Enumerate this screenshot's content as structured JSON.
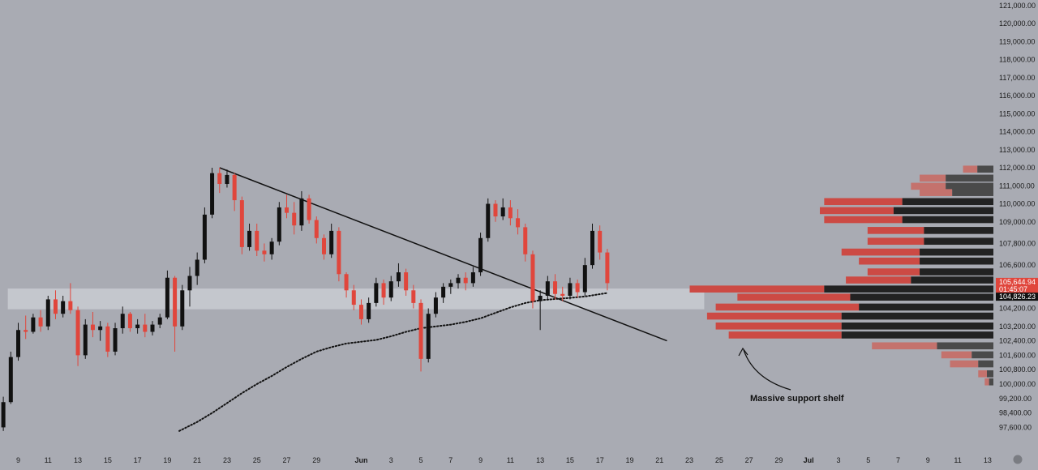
{
  "chart_data": {
    "type": "candlestick",
    "price_axis": {
      "range": [
        97200,
        121300
      ],
      "ticks": [
        {
          "value": 121000,
          "label": "121,000.00"
        },
        {
          "value": 120000,
          "label": "120,000.00"
        },
        {
          "value": 119000,
          "label": "119,000.00"
        },
        {
          "value": 118000,
          "label": "118,000.00"
        },
        {
          "value": 117000,
          "label": "117,000.00"
        },
        {
          "value": 116000,
          "label": "116,000.00"
        },
        {
          "value": 115000,
          "label": "115,000.00"
        },
        {
          "value": 114000,
          "label": "114,000.00"
        },
        {
          "value": 113000,
          "label": "113,000.00"
        },
        {
          "value": 112000,
          "label": "112,000.00"
        },
        {
          "value": 111000,
          "label": "111,000.00"
        },
        {
          "value": 110000,
          "label": "110,000.00"
        },
        {
          "value": 109000,
          "label": "109,000.00"
        },
        {
          "value": 107800,
          "label": "107,800.00"
        },
        {
          "value": 106600,
          "label": "106,600.00"
        },
        {
          "value": 104200,
          "label": "104,200.00"
        },
        {
          "value": 103200,
          "label": "103,200.00"
        },
        {
          "value": 102400,
          "label": "102,400.00"
        },
        {
          "value": 101600,
          "label": "101,600.00"
        },
        {
          "value": 100800,
          "label": "100,800.00"
        },
        {
          "value": 100000,
          "label": "100,000.00"
        },
        {
          "value": 99200,
          "label": "99,200.00"
        },
        {
          "value": 98400,
          "label": "98,400.00"
        },
        {
          "value": 97600,
          "label": "97,600.00"
        }
      ],
      "badges": [
        {
          "value": 105644.94,
          "label": "105,644.94",
          "sublabel": "01:45:07",
          "color": "#e0463c"
        },
        {
          "value": 104826.23,
          "label": "104,826.23",
          "color": "#111111"
        }
      ]
    },
    "time_axis": {
      "ticks": [
        {
          "day": 9,
          "label": "9"
        },
        {
          "day": 11,
          "label": "11"
        },
        {
          "day": 13,
          "label": "13"
        },
        {
          "day": 15,
          "label": "15"
        },
        {
          "day": 17,
          "label": "17"
        },
        {
          "day": 19,
          "label": "19"
        },
        {
          "day": 21,
          "label": "21"
        },
        {
          "day": 23,
          "label": "23"
        },
        {
          "day": 25,
          "label": "25"
        },
        {
          "day": 27,
          "label": "27"
        },
        {
          "day": 29,
          "label": "29"
        },
        {
          "day": 32,
          "label": "Jun",
          "month": true
        },
        {
          "day": 34,
          "label": "3"
        },
        {
          "day": 36,
          "label": "5"
        },
        {
          "day": 38,
          "label": "7"
        },
        {
          "day": 40,
          "label": "9"
        },
        {
          "day": 42,
          "label": "11"
        },
        {
          "day": 44,
          "label": "13"
        },
        {
          "day": 46,
          "label": "15"
        },
        {
          "day": 48,
          "label": "17"
        },
        {
          "day": 50,
          "label": "19"
        },
        {
          "day": 52,
          "label": "21"
        },
        {
          "day": 54,
          "label": "23"
        },
        {
          "day": 56,
          "label": "25"
        },
        {
          "day": 58,
          "label": "27"
        },
        {
          "day": 60,
          "label": "29"
        },
        {
          "day": 62,
          "label": "Jul",
          "month": true
        },
        {
          "day": 64,
          "label": "3"
        },
        {
          "day": 66,
          "label": "5"
        },
        {
          "day": 68,
          "label": "7"
        },
        {
          "day": 70,
          "label": "9"
        },
        {
          "day": 72,
          "label": "11"
        },
        {
          "day": 74,
          "label": "13"
        }
      ]
    },
    "candles": [
      {
        "day": 8.0,
        "o": 97600,
        "h": 99300,
        "l": 97400,
        "c": 99000
      },
      {
        "day": 8.5,
        "o": 99000,
        "h": 101800,
        "l": 98900,
        "c": 101500
      },
      {
        "day": 9.0,
        "o": 101500,
        "h": 103400,
        "l": 101300,
        "c": 103000
      },
      {
        "day": 9.5,
        "o": 103000,
        "h": 103800,
        "l": 102500,
        "c": 102900
      },
      {
        "day": 10.0,
        "o": 102900,
        "h": 103900,
        "l": 102800,
        "c": 103700
      },
      {
        "day": 10.5,
        "o": 103700,
        "h": 104100,
        "l": 102900,
        "c": 103200
      },
      {
        "day": 11.0,
        "o": 103200,
        "h": 104900,
        "l": 103000,
        "c": 104700
      },
      {
        "day": 11.5,
        "o": 104700,
        "h": 105200,
        "l": 103600,
        "c": 103900
      },
      {
        "day": 12.0,
        "o": 103900,
        "h": 104900,
        "l": 103700,
        "c": 104600
      },
      {
        "day": 12.5,
        "o": 104600,
        "h": 105600,
        "l": 103900,
        "c": 104100
      },
      {
        "day": 13.0,
        "o": 104100,
        "h": 104300,
        "l": 101000,
        "c": 101600
      },
      {
        "day": 13.5,
        "o": 101600,
        "h": 103600,
        "l": 101400,
        "c": 103300
      },
      {
        "day": 14.0,
        "o": 103300,
        "h": 104000,
        "l": 102600,
        "c": 103000
      },
      {
        "day": 14.5,
        "o": 103000,
        "h": 103500,
        "l": 102400,
        "c": 103200
      },
      {
        "day": 15.0,
        "o": 103200,
        "h": 103400,
        "l": 101500,
        "c": 101800
      },
      {
        "day": 15.5,
        "o": 101800,
        "h": 103400,
        "l": 101600,
        "c": 103100
      },
      {
        "day": 16.0,
        "o": 103100,
        "h": 104300,
        "l": 102800,
        "c": 103900
      },
      {
        "day": 16.5,
        "o": 103900,
        "h": 104000,
        "l": 102900,
        "c": 103100
      },
      {
        "day": 17.0,
        "o": 103100,
        "h": 103600,
        "l": 102800,
        "c": 103300
      },
      {
        "day": 17.5,
        "o": 103300,
        "h": 103900,
        "l": 102600,
        "c": 102900
      },
      {
        "day": 18.0,
        "o": 102900,
        "h": 103500,
        "l": 102700,
        "c": 103300
      },
      {
        "day": 18.5,
        "o": 103300,
        "h": 103900,
        "l": 103100,
        "c": 103700
      },
      {
        "day": 19.0,
        "o": 103700,
        "h": 106300,
        "l": 103600,
        "c": 105900
      },
      {
        "day": 19.5,
        "o": 105900,
        "h": 106000,
        "l": 101800,
        "c": 103200
      },
      {
        "day": 20.0,
        "o": 103200,
        "h": 105500,
        "l": 103000,
        "c": 105200
      },
      {
        "day": 20.5,
        "o": 105200,
        "h": 106500,
        "l": 104300,
        "c": 106000
      },
      {
        "day": 21.0,
        "o": 106000,
        "h": 107300,
        "l": 105500,
        "c": 106900
      },
      {
        "day": 21.5,
        "o": 106900,
        "h": 109800,
        "l": 106700,
        "c": 109400
      },
      {
        "day": 22.0,
        "o": 109400,
        "h": 112000,
        "l": 109200,
        "c": 111700
      },
      {
        "day": 22.5,
        "o": 111700,
        "h": 112000,
        "l": 110600,
        "c": 111100
      },
      {
        "day": 23.0,
        "o": 111100,
        "h": 111900,
        "l": 110900,
        "c": 111600
      },
      {
        "day": 23.5,
        "o": 111600,
        "h": 111700,
        "l": 109600,
        "c": 110200
      },
      {
        "day": 24.0,
        "o": 110200,
        "h": 110400,
        "l": 107200,
        "c": 107600
      },
      {
        "day": 24.5,
        "o": 107600,
        "h": 108900,
        "l": 107400,
        "c": 108500
      },
      {
        "day": 25.0,
        "o": 108500,
        "h": 108900,
        "l": 107100,
        "c": 107400
      },
      {
        "day": 25.5,
        "o": 107400,
        "h": 107800,
        "l": 106800,
        "c": 107200
      },
      {
        "day": 26.0,
        "o": 107200,
        "h": 108100,
        "l": 106900,
        "c": 107900
      },
      {
        "day": 26.5,
        "o": 107900,
        "h": 110100,
        "l": 107700,
        "c": 109800
      },
      {
        "day": 27.0,
        "o": 109800,
        "h": 110500,
        "l": 109200,
        "c": 109500
      },
      {
        "day": 27.5,
        "o": 109500,
        "h": 110100,
        "l": 108300,
        "c": 108800
      },
      {
        "day": 28.0,
        "o": 108800,
        "h": 110700,
        "l": 108500,
        "c": 110300
      },
      {
        "day": 28.5,
        "o": 110300,
        "h": 110500,
        "l": 108900,
        "c": 109100
      },
      {
        "day": 29.0,
        "o": 109100,
        "h": 109300,
        "l": 107800,
        "c": 108100
      },
      {
        "day": 29.5,
        "o": 108100,
        "h": 108300,
        "l": 106900,
        "c": 107200
      },
      {
        "day": 30.0,
        "o": 107200,
        "h": 108900,
        "l": 107000,
        "c": 108500
      },
      {
        "day": 30.5,
        "o": 108500,
        "h": 108700,
        "l": 105700,
        "c": 106100
      },
      {
        "day": 31.0,
        "o": 106100,
        "h": 106200,
        "l": 104800,
        "c": 105200
      },
      {
        "day": 31.5,
        "o": 105200,
        "h": 105500,
        "l": 104100,
        "c": 104400
      },
      {
        "day": 32.0,
        "o": 104400,
        "h": 104700,
        "l": 103300,
        "c": 103600
      },
      {
        "day": 32.5,
        "o": 103600,
        "h": 104800,
        "l": 103400,
        "c": 104500
      },
      {
        "day": 33.0,
        "o": 104500,
        "h": 105900,
        "l": 104300,
        "c": 105600
      },
      {
        "day": 33.5,
        "o": 105600,
        "h": 105800,
        "l": 104400,
        "c": 104800
      },
      {
        "day": 34.0,
        "o": 104800,
        "h": 106000,
        "l": 104600,
        "c": 105700
      },
      {
        "day": 34.5,
        "o": 105700,
        "h": 106700,
        "l": 105400,
        "c": 106200
      },
      {
        "day": 35.0,
        "o": 106200,
        "h": 106400,
        "l": 104900,
        "c": 105200
      },
      {
        "day": 35.5,
        "o": 105200,
        "h": 105500,
        "l": 104200,
        "c": 104500
      },
      {
        "day": 36.0,
        "o": 104500,
        "h": 104700,
        "l": 100700,
        "c": 101400
      },
      {
        "day": 36.5,
        "o": 101400,
        "h": 104200,
        "l": 101200,
        "c": 103900
      },
      {
        "day": 37.0,
        "o": 103900,
        "h": 105100,
        "l": 103700,
        "c": 104800
      },
      {
        "day": 37.5,
        "o": 104800,
        "h": 105600,
        "l": 104500,
        "c": 105400
      },
      {
        "day": 38.0,
        "o": 105400,
        "h": 105800,
        "l": 105000,
        "c": 105600
      },
      {
        "day": 38.5,
        "o": 105600,
        "h": 106100,
        "l": 105300,
        "c": 105900
      },
      {
        "day": 39.0,
        "o": 105900,
        "h": 106200,
        "l": 105200,
        "c": 105600
      },
      {
        "day": 39.5,
        "o": 105600,
        "h": 106500,
        "l": 105400,
        "c": 106200
      },
      {
        "day": 40.0,
        "o": 106200,
        "h": 108400,
        "l": 106000,
        "c": 108100
      },
      {
        "day": 40.5,
        "o": 108100,
        "h": 110300,
        "l": 107900,
        "c": 110000
      },
      {
        "day": 41.0,
        "o": 110000,
        "h": 110200,
        "l": 109000,
        "c": 109300
      },
      {
        "day": 41.5,
        "o": 109300,
        "h": 110300,
        "l": 109100,
        "c": 109800
      },
      {
        "day": 42.0,
        "o": 109800,
        "h": 110200,
        "l": 108800,
        "c": 109200
      },
      {
        "day": 42.5,
        "o": 109200,
        "h": 109700,
        "l": 108300,
        "c": 108700
      },
      {
        "day": 43.0,
        "o": 108700,
        "h": 108900,
        "l": 106800,
        "c": 107200
      },
      {
        "day": 43.5,
        "o": 107200,
        "h": 107400,
        "l": 104200,
        "c": 104600
      },
      {
        "day": 44.0,
        "o": 104600,
        "h": 105200,
        "l": 103000,
        "c": 104900
      },
      {
        "day": 44.5,
        "o": 104900,
        "h": 106000,
        "l": 104700,
        "c": 105700
      },
      {
        "day": 45.0,
        "o": 105700,
        "h": 106100,
        "l": 104700,
        "c": 105000
      },
      {
        "day": 45.5,
        "o": 105000,
        "h": 105400,
        "l": 104600,
        "c": 104900
      },
      {
        "day": 46.0,
        "o": 104900,
        "h": 105900,
        "l": 104700,
        "c": 105600
      },
      {
        "day": 46.5,
        "o": 105600,
        "h": 105800,
        "l": 104800,
        "c": 105100
      },
      {
        "day": 47.0,
        "o": 105100,
        "h": 107000,
        "l": 104900,
        "c": 106600
      },
      {
        "day": 47.5,
        "o": 106600,
        "h": 108900,
        "l": 106400,
        "c": 108500
      },
      {
        "day": 48.0,
        "o": 108500,
        "h": 108800,
        "l": 106900,
        "c": 107300
      },
      {
        "day": 48.5,
        "o": 107300,
        "h": 107500,
        "l": 105200,
        "c": 105600
      }
    ],
    "moving_average": [
      {
        "day": 19.8,
        "v": 97400
      },
      {
        "day": 21,
        "v": 97900
      },
      {
        "day": 22,
        "v": 98400
      },
      {
        "day": 23,
        "v": 98950
      },
      {
        "day": 24,
        "v": 99500
      },
      {
        "day": 25,
        "v": 100000
      },
      {
        "day": 26,
        "v": 100450
      },
      {
        "day": 27,
        "v": 100950
      },
      {
        "day": 28,
        "v": 101400
      },
      {
        "day": 29,
        "v": 101800
      },
      {
        "day": 30,
        "v": 102050
      },
      {
        "day": 31,
        "v": 102250
      },
      {
        "day": 32,
        "v": 102350
      },
      {
        "day": 33,
        "v": 102450
      },
      {
        "day": 34,
        "v": 102650
      },
      {
        "day": 35,
        "v": 102900
      },
      {
        "day": 36,
        "v": 103100
      },
      {
        "day": 37,
        "v": 103200
      },
      {
        "day": 38,
        "v": 103300
      },
      {
        "day": 39,
        "v": 103450
      },
      {
        "day": 40,
        "v": 103650
      },
      {
        "day": 41,
        "v": 103950
      },
      {
        "day": 42,
        "v": 104250
      },
      {
        "day": 43,
        "v": 104500
      },
      {
        "day": 44,
        "v": 104650
      },
      {
        "day": 45,
        "v": 104720
      },
      {
        "day": 46,
        "v": 104780
      },
      {
        "day": 47,
        "v": 104860
      },
      {
        "day": 48,
        "v": 104990
      },
      {
        "day": 48.5,
        "v": 105050
      }
    ],
    "trendline": {
      "from": {
        "day": 22.5,
        "v": 112000
      },
      "to": {
        "day": 52.5,
        "v": 102400
      }
    },
    "support_zone": {
      "from_day": 8.3,
      "to_day": 55,
      "low": 104150,
      "high": 105300
    },
    "volume_profile": [
      {
        "price": 111900,
        "total": 0.07,
        "dark": 0.037
      },
      {
        "price": 111400,
        "total": 0.17,
        "dark": 0.11
      },
      {
        "price": 110950,
        "total": 0.19,
        "dark": 0.11
      },
      {
        "price": 110600,
        "total": 0.17,
        "dark": 0.095
      },
      {
        "price": 110100,
        "total": 0.39,
        "dark": 0.21
      },
      {
        "price": 109600,
        "total": 0.4,
        "dark": 0.23
      },
      {
        "price": 109100,
        "total": 0.39,
        "dark": 0.21
      },
      {
        "price": 108500,
        "total": 0.29,
        "dark": 0.16
      },
      {
        "price": 107900,
        "total": 0.29,
        "dark": 0.16
      },
      {
        "price": 107300,
        "total": 0.35,
        "dark": 0.17
      },
      {
        "price": 106800,
        "total": 0.31,
        "dark": 0.17
      },
      {
        "price": 106200,
        "total": 0.29,
        "dark": 0.17
      },
      {
        "price": 105750,
        "total": 0.34,
        "dark": 0.19
      },
      {
        "price": 105250,
        "total": 0.7,
        "dark": 0.39
      },
      {
        "price": 104800,
        "total": 0.59,
        "dark": 0.33
      },
      {
        "price": 104250,
        "total": 0.64,
        "dark": 0.31
      },
      {
        "price": 103750,
        "total": 0.66,
        "dark": 0.35
      },
      {
        "price": 103200,
        "total": 0.64,
        "dark": 0.35
      },
      {
        "price": 102700,
        "total": 0.61,
        "dark": 0.35
      },
      {
        "price": 102100,
        "total": 0.28,
        "dark": 0.13
      },
      {
        "price": 101600,
        "total": 0.12,
        "dark": 0.05
      },
      {
        "price": 101100,
        "total": 0.1,
        "dark": 0.035
      },
      {
        "price": 100550,
        "total": 0.035,
        "dark": 0.015
      },
      {
        "price": 100100,
        "total": 0.02,
        "dark": 0.01
      }
    ],
    "annotations": [
      {
        "text": "Massive support shelf"
      }
    ],
    "colors": {
      "background": "#a9abb3",
      "up": "#111111",
      "down": "#e0463c",
      "profile_red": "#cc4a44",
      "profile_red_light": "#c4726d",
      "profile_dark": "#222222",
      "profile_dark_light": "#4a4a4a",
      "support_zone": "#c9cbd1",
      "trendline": "#111111",
      "moving_average": "#111111"
    }
  }
}
